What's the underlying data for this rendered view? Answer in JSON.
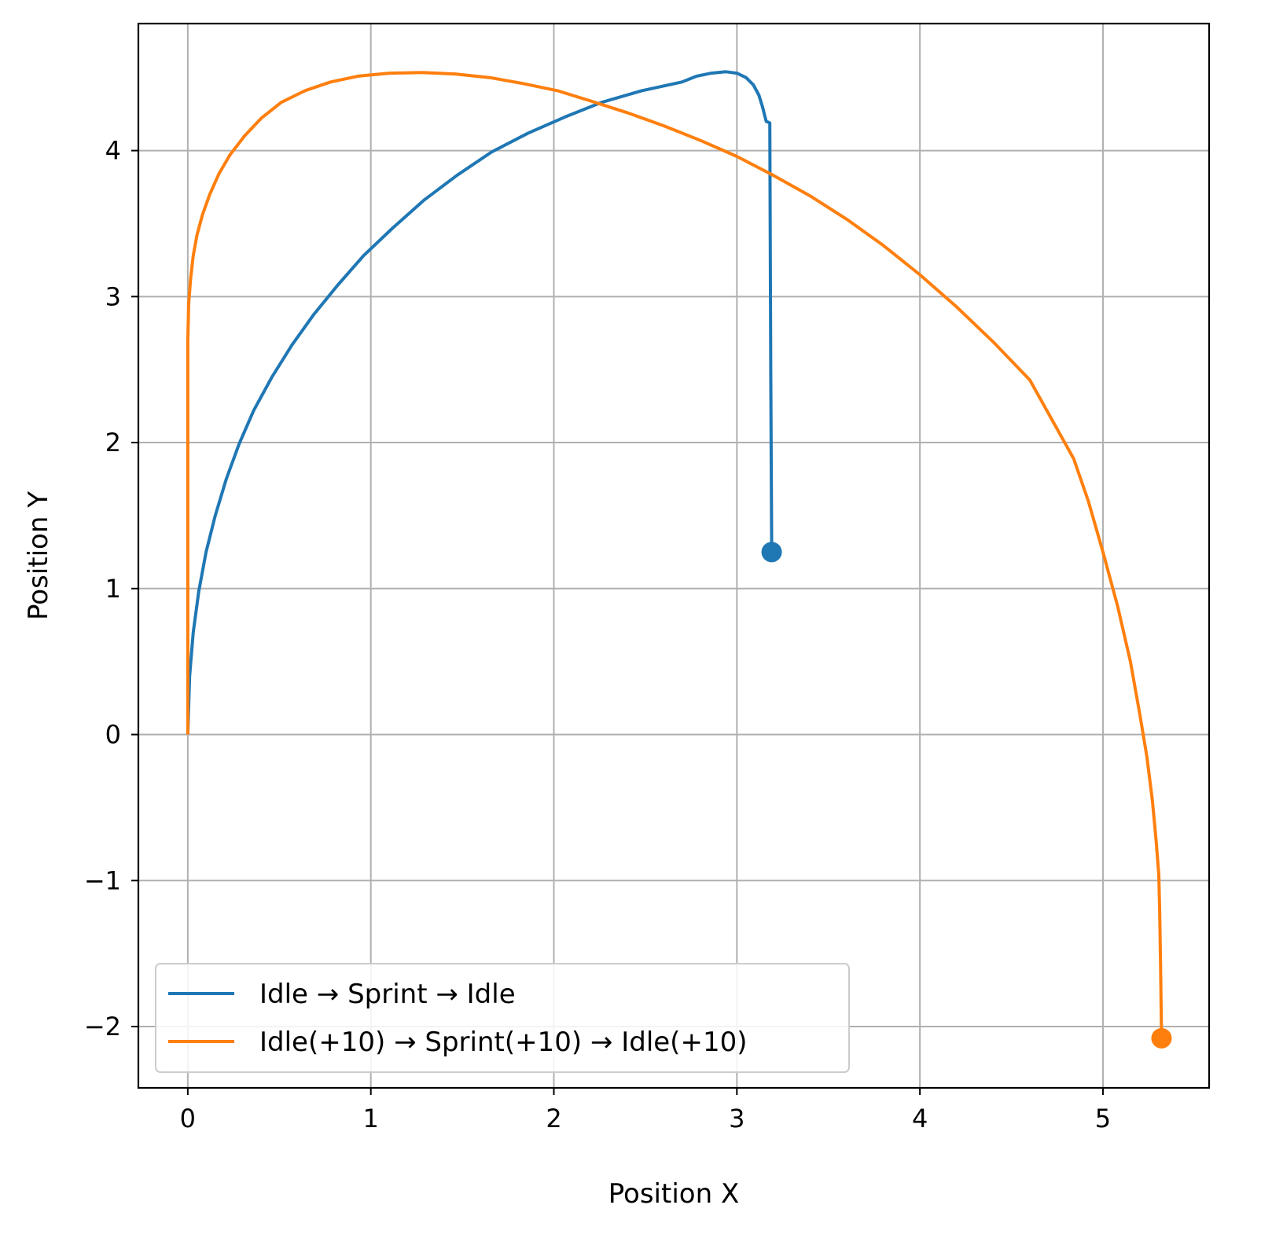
{
  "chart_data": {
    "type": "line",
    "title": "",
    "xlabel": "Position X",
    "ylabel": "Position Y",
    "xlim": [
      -0.27,
      5.58
    ],
    "ylim": [
      -2.42,
      4.87
    ],
    "xticks": [
      0,
      1,
      2,
      3,
      4,
      5
    ],
    "yticks": [
      -2,
      -1,
      0,
      1,
      2,
      3,
      4
    ],
    "xtick_labels": [
      "0",
      "1",
      "2",
      "3",
      "4",
      "5"
    ],
    "ytick_labels": [
      "−2",
      "−1",
      "0",
      "1",
      "2",
      "3",
      "4"
    ],
    "grid": true,
    "legend_position": "lower-left",
    "series": [
      {
        "name": "Idle → Sprint → Idle",
        "color": "#1f77b4",
        "end_marker": true,
        "x": [
          0,
          0.01,
          0.03,
          0.06,
          0.1,
          0.15,
          0.21,
          0.28,
          0.36,
          0.46,
          0.57,
          0.69,
          0.82,
          0.96,
          1.12,
          1.29,
          1.47,
          1.66,
          1.86,
          2.06,
          2.26,
          2.48,
          2.7,
          2.78,
          2.86,
          2.94,
          3.0,
          3.05,
          3.09,
          3.12,
          3.14,
          3.16,
          3.18,
          3.185,
          3.19
        ],
        "y": [
          0,
          0.4,
          0.7,
          0.98,
          1.25,
          1.5,
          1.75,
          1.99,
          2.22,
          2.45,
          2.67,
          2.88,
          3.08,
          3.28,
          3.47,
          3.66,
          3.83,
          3.99,
          4.12,
          4.23,
          4.33,
          4.41,
          4.47,
          4.51,
          4.53,
          4.54,
          4.53,
          4.5,
          4.45,
          4.38,
          4.3,
          4.2,
          4.19,
          2.5,
          1.25
        ]
      },
      {
        "name": "Idle(+10) → Sprint(+10) → Idle(+10)",
        "color": "#ff7f0e",
        "end_marker": true,
        "x": [
          0,
          0,
          0.005,
          0.015,
          0.03,
          0.05,
          0.08,
          0.12,
          0.17,
          0.23,
          0.31,
          0.4,
          0.51,
          0.64,
          0.78,
          0.93,
          1.1,
          1.28,
          1.46,
          1.65,
          1.83,
          2.02,
          2.2,
          2.4,
          2.6,
          2.8,
          3.0,
          3.2,
          3.4,
          3.6,
          3.8,
          4.0,
          4.2,
          4.4,
          4.6,
          4.84,
          4.92,
          5.0,
          5.08,
          5.15,
          5.2,
          5.24,
          5.27,
          5.29,
          5.305,
          5.31,
          5.315,
          5.32
        ],
        "y": [
          0,
          2.7,
          2.95,
          3.12,
          3.28,
          3.42,
          3.56,
          3.7,
          3.84,
          3.97,
          4.1,
          4.22,
          4.33,
          4.41,
          4.47,
          4.51,
          4.53,
          4.535,
          4.525,
          4.5,
          4.46,
          4.41,
          4.34,
          4.26,
          4.17,
          4.07,
          3.96,
          3.83,
          3.69,
          3.53,
          3.35,
          3.15,
          2.93,
          2.69,
          2.43,
          1.89,
          1.6,
          1.25,
          0.88,
          0.5,
          0.15,
          -0.15,
          -0.45,
          -0.72,
          -0.96,
          -1.2,
          -1.6,
          -2.08
        ]
      }
    ]
  }
}
